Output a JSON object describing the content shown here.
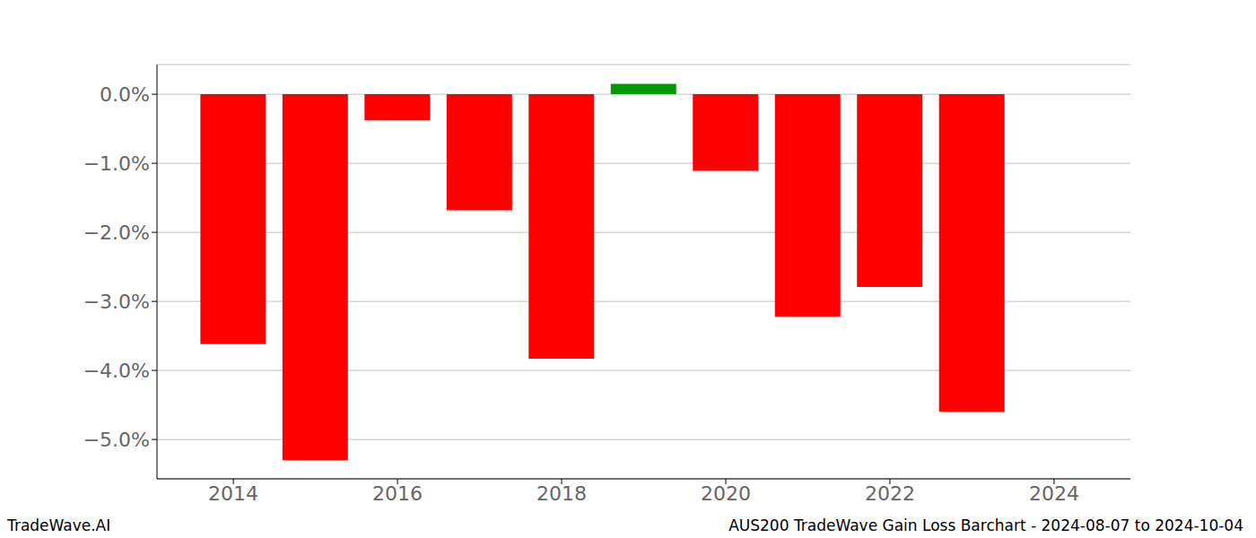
{
  "chart_data": {
    "type": "bar",
    "title": "AUS200 TradeWave Gain Loss Barchart - 2024-08-07 to 2024-10-04",
    "annotations": [
      "TradeWave.AI"
    ],
    "x": [
      2014,
      2015,
      2016,
      2017,
      2018,
      2019,
      2020,
      2021,
      2022,
      2023
    ],
    "values": [
      -3.62,
      -5.3,
      -0.38,
      -1.68,
      -3.83,
      0.15,
      -1.11,
      -3.22,
      -2.79,
      -4.6
    ],
    "colors": [
      "#ff0000",
      "#ff0000",
      "#ff0000",
      "#ff0000",
      "#ff0000",
      "#009900",
      "#ff0000",
      "#ff0000",
      "#ff0000",
      "#ff0000"
    ],
    "xlim": [
      2013.07,
      2024.93
    ],
    "xticks": [
      2014,
      2016,
      2018,
      2020,
      2022,
      2024
    ],
    "ylim": [
      -5.57,
      0.43
    ],
    "yticks": [
      {
        "value": 0,
        "label": "0.0%"
      },
      {
        "value": -1,
        "label": "−1.0%"
      },
      {
        "value": -2,
        "label": "−2.0%"
      },
      {
        "value": -3,
        "label": "−3.0%"
      },
      {
        "value": -4,
        "label": "−4.0%"
      },
      {
        "value": -5,
        "label": "−5.0%"
      }
    ],
    "grid": true
  }
}
